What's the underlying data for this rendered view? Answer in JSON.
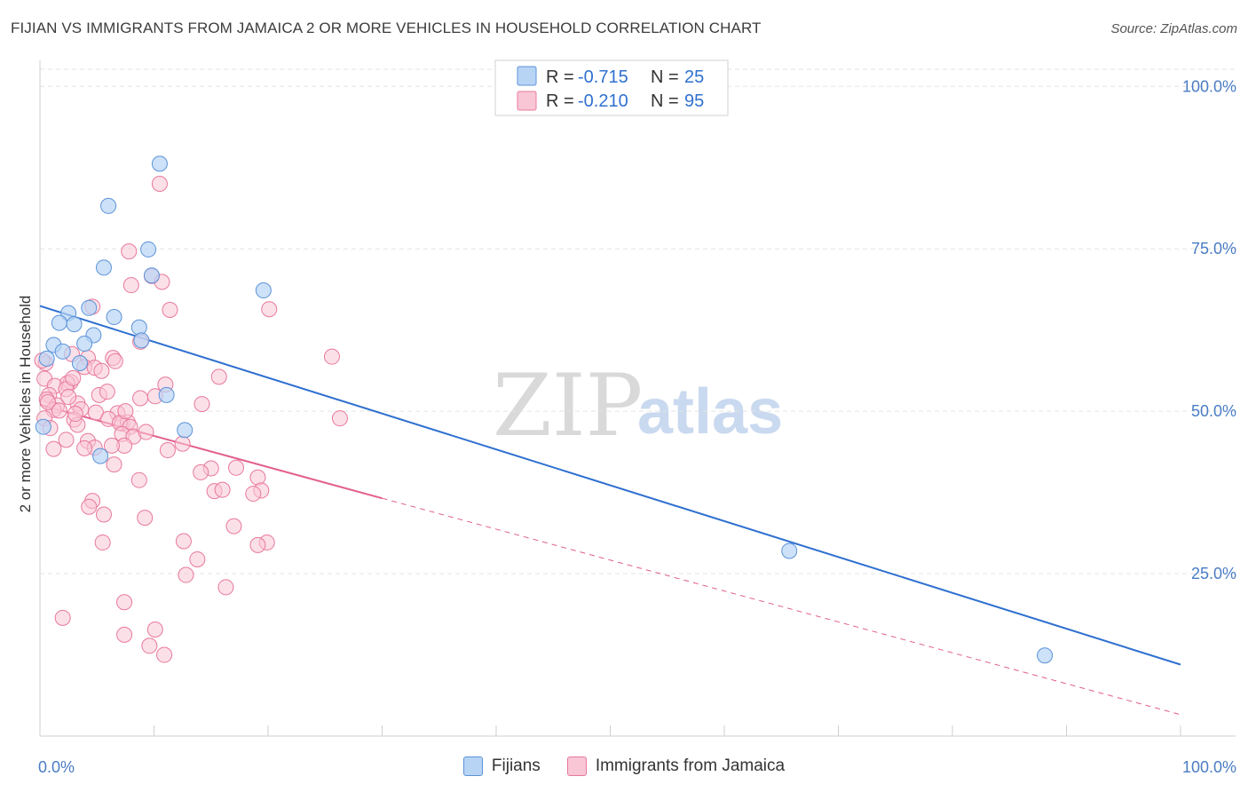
{
  "title": "FIJIAN VS IMMIGRANTS FROM JAMAICA 2 OR MORE VEHICLES IN HOUSEHOLD CORRELATION CHART",
  "source": "Source: ZipAtlas.com",
  "watermark": {
    "zip": "ZIP",
    "atlas": "atlas"
  },
  "colors": {
    "fijians_fill": "#b8d4f5",
    "fijians_stroke": "#5b93d9",
    "fijians_line": "#2f70d0",
    "jamaica_fill": "#f9c6d6",
    "jamaica_stroke": "#e8799c",
    "jamaica_line": "#e25f8e",
    "grid": "#e3e3e3",
    "tick_text": "#4a7cc4"
  },
  "legend_top": [
    {
      "r_label": "R = ",
      "r_value": "-0.715",
      "n_label": "N = ",
      "n_value": "25"
    },
    {
      "r_label": "R = ",
      "r_value": "-0.210",
      "n_label": "N = ",
      "n_value": "95"
    }
  ],
  "chart_data": {
    "type": "scatter",
    "ylabel": "2 or more Vehicles in Household",
    "xlim": [
      0,
      100
    ],
    "ylim": [
      0,
      104
    ],
    "x_ticks": [
      "0.0%",
      "100.0%"
    ],
    "y_ticks": [
      {
        "value": 25,
        "label": "25.0%"
      },
      {
        "value": 50,
        "label": "50.0%"
      },
      {
        "value": 75,
        "label": "75.0%"
      },
      {
        "value": 100,
        "label": "100.0%"
      }
    ],
    "grid": true,
    "legend_position": "bottom",
    "series": [
      {
        "name": "Fijians",
        "points": [
          [
            10.5,
            88.1
          ],
          [
            6.0,
            81.6
          ],
          [
            9.5,
            74.9
          ],
          [
            5.6,
            72.1
          ],
          [
            9.8,
            70.9
          ],
          [
            19.6,
            68.6
          ],
          [
            4.3,
            65.9
          ],
          [
            2.5,
            65.1
          ],
          [
            6.5,
            64.5
          ],
          [
            1.7,
            63.6
          ],
          [
            3.0,
            63.4
          ],
          [
            8.7,
            62.9
          ],
          [
            4.7,
            61.7
          ],
          [
            8.9,
            60.9
          ],
          [
            1.2,
            60.2
          ],
          [
            3.9,
            60.4
          ],
          [
            2.0,
            59.2
          ],
          [
            0.6,
            58.1
          ],
          [
            3.5,
            57.4
          ],
          [
            11.1,
            52.5
          ],
          [
            12.7,
            47.1
          ],
          [
            0.3,
            47.6
          ],
          [
            5.3,
            43.1
          ],
          [
            65.7,
            28.5
          ],
          [
            88.1,
            12.4
          ]
        ],
        "trend": {
          "x": [
            0,
            100
          ],
          "y": [
            66.2,
            11.0
          ]
        }
      },
      {
        "name": "Immigrants from Jamaica",
        "points": [
          [
            10.5,
            85.0
          ],
          [
            7.8,
            74.6
          ],
          [
            9.8,
            70.8
          ],
          [
            10.7,
            69.9
          ],
          [
            8.0,
            69.4
          ],
          [
            4.6,
            66.1
          ],
          [
            11.4,
            65.6
          ],
          [
            20.1,
            65.7
          ],
          [
            8.8,
            60.7
          ],
          [
            2.8,
            58.8
          ],
          [
            25.6,
            58.4
          ],
          [
            4.2,
            58.2
          ],
          [
            6.4,
            58.2
          ],
          [
            0.5,
            57.4
          ],
          [
            3.9,
            56.8
          ],
          [
            4.8,
            56.7
          ],
          [
            5.4,
            56.2
          ],
          [
            0.4,
            55.0
          ],
          [
            15.7,
            55.3
          ],
          [
            2.7,
            54.5
          ],
          [
            2.4,
            54.3
          ],
          [
            1.3,
            53.9
          ],
          [
            11.0,
            54.1
          ],
          [
            2.3,
            53.4
          ],
          [
            0.8,
            52.5
          ],
          [
            8.8,
            52.0
          ],
          [
            10.1,
            52.3
          ],
          [
            5.2,
            52.5
          ],
          [
            0.6,
            51.8
          ],
          [
            3.3,
            51.2
          ],
          [
            14.2,
            51.1
          ],
          [
            1.5,
            50.9
          ],
          [
            1.2,
            50.2
          ],
          [
            3.6,
            50.3
          ],
          [
            4.9,
            49.8
          ],
          [
            6.8,
            49.7
          ],
          [
            0.4,
            48.9
          ],
          [
            6.0,
            48.8
          ],
          [
            3.0,
            48.7
          ],
          [
            7.2,
            48.1
          ],
          [
            7.7,
            48.3
          ],
          [
            7.0,
            48.2
          ],
          [
            26.3,
            48.9
          ],
          [
            3.3,
            47.9
          ],
          [
            7.9,
            47.6
          ],
          [
            7.2,
            46.5
          ],
          [
            8.2,
            46.1
          ],
          [
            4.2,
            45.4
          ],
          [
            2.3,
            45.6
          ],
          [
            12.5,
            45.0
          ],
          [
            7.4,
            44.7
          ],
          [
            6.3,
            44.7
          ],
          [
            4.8,
            44.4
          ],
          [
            11.2,
            44.0
          ],
          [
            1.2,
            44.2
          ],
          [
            3.9,
            44.3
          ],
          [
            6.5,
            41.8
          ],
          [
            15.0,
            41.2
          ],
          [
            17.2,
            41.3
          ],
          [
            14.1,
            40.6
          ],
          [
            19.1,
            39.8
          ],
          [
            8.7,
            39.4
          ],
          [
            15.3,
            37.7
          ],
          [
            16.0,
            37.9
          ],
          [
            19.4,
            37.8
          ],
          [
            18.7,
            37.3
          ],
          [
            4.6,
            36.2
          ],
          [
            4.3,
            35.3
          ],
          [
            5.6,
            34.1
          ],
          [
            9.2,
            33.6
          ],
          [
            17.0,
            32.3
          ],
          [
            12.6,
            30.0
          ],
          [
            5.5,
            29.8
          ],
          [
            19.9,
            29.8
          ],
          [
            19.1,
            29.4
          ],
          [
            13.8,
            27.2
          ],
          [
            12.8,
            24.8
          ],
          [
            16.3,
            22.9
          ],
          [
            7.4,
            20.6
          ],
          [
            2.0,
            18.2
          ],
          [
            10.1,
            16.4
          ],
          [
            7.4,
            15.6
          ],
          [
            9.6,
            13.9
          ],
          [
            10.9,
            12.5
          ],
          [
            0.2,
            57.8
          ],
          [
            0.7,
            51.4
          ],
          [
            1.7,
            50.1
          ],
          [
            5.9,
            53.0
          ],
          [
            2.9,
            55.1
          ],
          [
            9.3,
            46.8
          ],
          [
            6.6,
            57.7
          ],
          [
            3.1,
            49.6
          ],
          [
            7.5,
            50.0
          ],
          [
            0.9,
            47.4
          ],
          [
            2.5,
            52.2
          ]
        ],
        "trend": {
          "x": [
            0,
            30
          ],
          "y": [
            51.0,
            36.6
          ]
        },
        "trend_dashed": {
          "x": [
            30,
            100
          ],
          "y": [
            36.6,
            3.3
          ]
        }
      }
    ]
  }
}
